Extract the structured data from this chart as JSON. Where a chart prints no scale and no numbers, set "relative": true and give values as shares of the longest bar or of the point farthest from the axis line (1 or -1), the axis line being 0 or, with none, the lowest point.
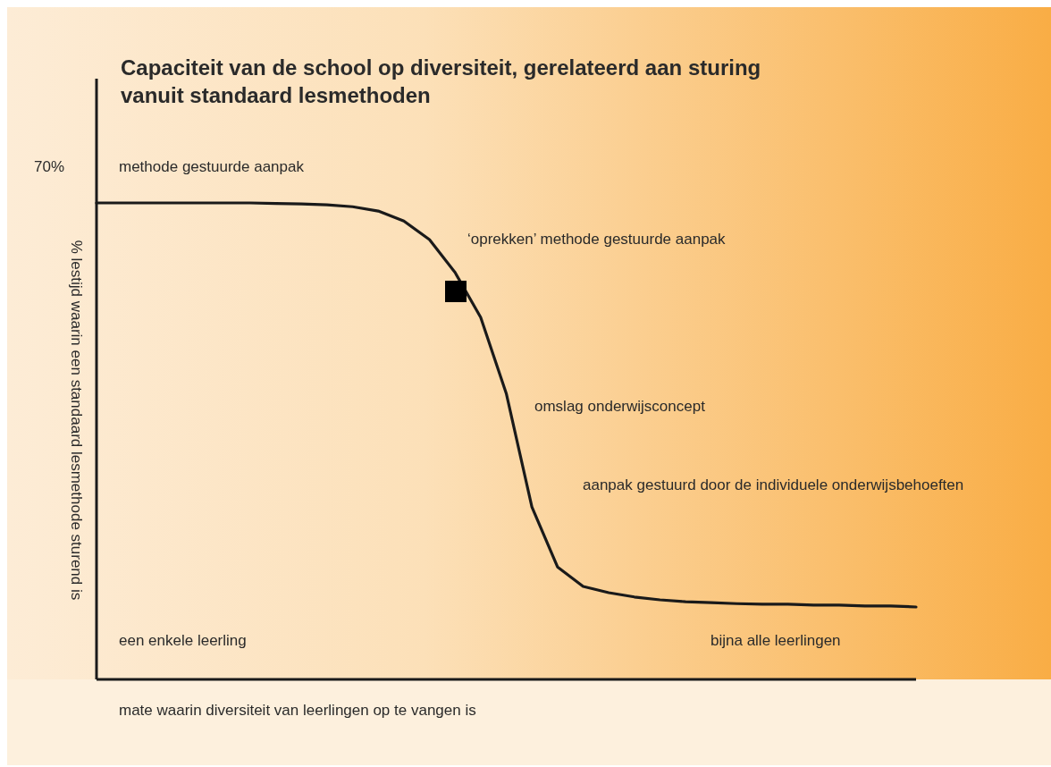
{
  "chart_data": {
    "type": "line",
    "title": "Capaciteit van de school op diversiteit, gerelateerd aan sturing vanuit standaard lesmethoden",
    "xlabel": "mate waarin diversiteit van leerlingen op te vangen is",
    "ylabel": "% lestijd waarin een standaard lesmethode sturend is",
    "annotations": [
      "70%",
      "methode gestuurde aanpak",
      "‘oprekken’ methode gestuurde aanpak",
      "omslag onderwijsconcept",
      "aanpak gestuurd door de individuele onderwijsbehoeften",
      "een enkele leerling",
      "bijna alle leerlingen"
    ],
    "categories": [
      null,
      null,
      null,
      null,
      null,
      null,
      null,
      null,
      null,
      null,
      null,
      null,
      null,
      null,
      null,
      null,
      null,
      null,
      null,
      null,
      null,
      null,
      null,
      null,
      null,
      null,
      null,
      null,
      null,
      null,
      null,
      null,
      null
    ],
    "relative": true,
    "series": [
      {
        "color": "#1a1a1a",
        "values": [
          1,
          1,
          1,
          1,
          1,
          1,
          1,
          0.999,
          0.998,
          0.996,
          0.992,
          0.983,
          0.962,
          0.923,
          0.854,
          0.76,
          0.6,
          0.362,
          0.236,
          0.195,
          0.182,
          0.173,
          0.167,
          0.163,
          0.161,
          0.159,
          0.158,
          0.158,
          0.156,
          0.156,
          0.154,
          0.154,
          0.152
        ]
      }
    ]
  }
}
